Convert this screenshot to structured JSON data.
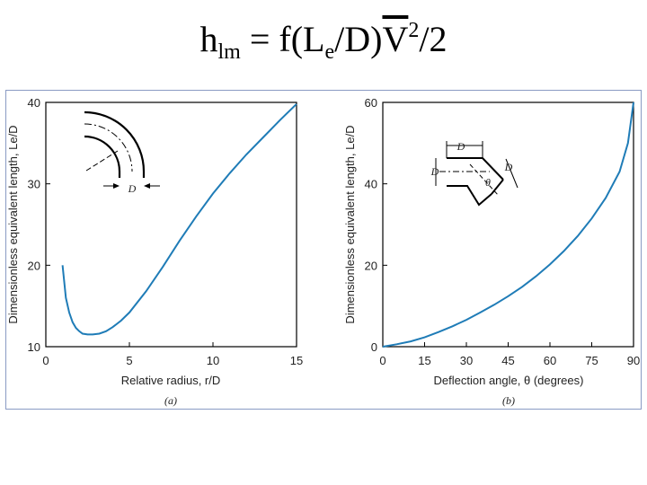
{
  "header": {
    "formula_h": "h",
    "formula_lm": "lm",
    "formula_mid": " = f(L",
    "formula_e": "e",
    "formula_d": "/D)",
    "formula_v": "V",
    "formula_sq": "2",
    "formula_end": "/2"
  },
  "chart_data": [
    {
      "type": "line",
      "panel_label": "(a)",
      "xlabel": "Relative radius, r/D",
      "ylabel": "Dimensionless equivalent length, Le/D",
      "xlim": [
        0,
        15
      ],
      "ylim": [
        10,
        40
      ],
      "xticks": [
        0,
        5,
        10,
        15
      ],
      "yticks": [
        10,
        20,
        30,
        40
      ],
      "grid": false,
      "series": [
        {
          "x": [
            1.0,
            1.2,
            1.4,
            1.6,
            1.8,
            2.0,
            2.2,
            2.5,
            2.8,
            3.2,
            3.6,
            4.0,
            4.5,
            5.0,
            6.0,
            7.0,
            8.0,
            9.0,
            10.0,
            11.0,
            12.0,
            13.0,
            14.0,
            15.0
          ],
          "y": [
            20.0,
            16.0,
            14.2,
            13.0,
            12.3,
            11.9,
            11.6,
            11.5,
            11.5,
            11.6,
            11.9,
            12.4,
            13.2,
            14.2,
            16.8,
            19.8,
            23.0,
            26.0,
            28.8,
            31.3,
            33.6,
            35.7,
            37.8,
            39.8
          ],
          "color": "#1f7cb7"
        }
      ],
      "inset": {
        "label": "D"
      }
    },
    {
      "type": "line",
      "panel_label": "(b)",
      "xlabel": "Deflection angle, θ (degrees)",
      "ylabel": "Dimensionless equivalent length, Le/D",
      "xlim": [
        0,
        90
      ],
      "ylim": [
        0,
        60
      ],
      "xticks": [
        0,
        15,
        30,
        45,
        60,
        75,
        90
      ],
      "yticks": [
        0,
        20,
        40,
        60
      ],
      "grid": false,
      "series": [
        {
          "x": [
            0,
            5,
            10,
            15,
            20,
            25,
            30,
            35,
            40,
            45,
            50,
            55,
            60,
            65,
            70,
            75,
            80,
            85,
            88,
            90
          ],
          "y": [
            0.0,
            0.6,
            1.3,
            2.3,
            3.6,
            5.0,
            6.6,
            8.4,
            10.3,
            12.4,
            14.7,
            17.3,
            20.2,
            23.5,
            27.2,
            31.5,
            36.5,
            43.0,
            50.0,
            60.0
          ],
          "color": "#1f7cb7"
        }
      ],
      "inset": {
        "label_d_top": "D",
        "label_d_left": "D",
        "label_d_right": "D",
        "label_theta": "θ"
      }
    }
  ]
}
